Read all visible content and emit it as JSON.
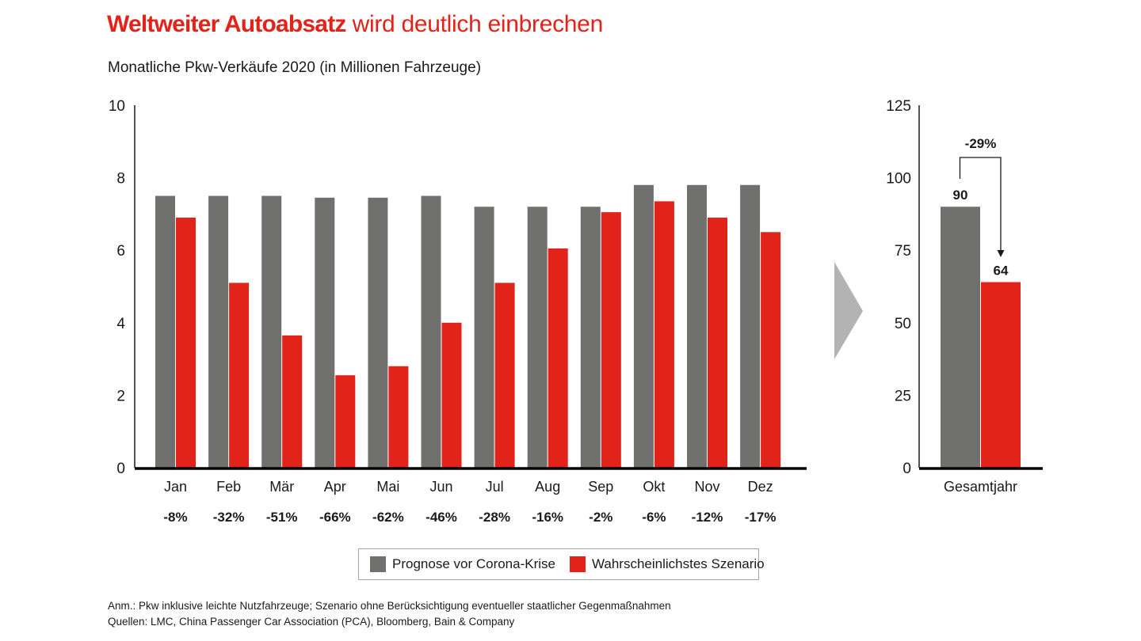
{
  "header": {
    "title_bold": "Weltweiter Autoabsatz",
    "title_rest": " wird deutlich einbrechen",
    "subtitle": "Monatliche Pkw-Verkäufe 2020 (in Millionen Fahrzeuge)"
  },
  "colors": {
    "accent": "#e2231a",
    "gray_series": "#70706e",
    "red_series": "#e2231a",
    "arrow_chevron": "#b3b3b3"
  },
  "chart_data": [
    {
      "type": "bar",
      "title": "Monatliche Pkw-Verkäufe 2020 (in Millionen Fahrzeuge)",
      "xlabel": "",
      "ylabel": "",
      "ylim": [
        0,
        10
      ],
      "yticks": [
        "0",
        "2",
        "4",
        "6",
        "8",
        "10"
      ],
      "categories": [
        "Jan",
        "Feb",
        "Mär",
        "Apr",
        "Mai",
        "Jun",
        "Jul",
        "Aug",
        "Sep",
        "Okt",
        "Nov",
        "Dez"
      ],
      "series": [
        {
          "name": "Prognose vor Corona-Krise",
          "color": "#70706e",
          "values": [
            7.5,
            7.5,
            7.5,
            7.45,
            7.45,
            7.5,
            7.2,
            7.2,
            7.2,
            7.8,
            7.8,
            7.8
          ]
        },
        {
          "name": "Wahrscheinlichstes Szenario",
          "color": "#e2231a",
          "values": [
            6.9,
            5.1,
            3.65,
            2.55,
            2.8,
            4.0,
            5.1,
            6.05,
            7.05,
            7.35,
            6.9,
            6.5
          ]
        }
      ],
      "change_labels": [
        "-8%",
        "-32%",
        "-51%",
        "-66%",
        "-62%",
        "-46%",
        "-28%",
        "-16%",
        "-2%",
        "-6%",
        "-12%",
        "-17%"
      ],
      "grid": false,
      "legend": "bottom"
    },
    {
      "type": "bar",
      "title": "",
      "ylim": [
        0,
        125
      ],
      "yticks": [
        "0",
        "25",
        "50",
        "75",
        "100",
        "125"
      ],
      "categories": [
        "Gesamtjahr"
      ],
      "series": [
        {
          "name": "Prognose vor Corona-Krise",
          "color": "#70706e",
          "values": [
            90
          ]
        },
        {
          "name": "Wahrscheinlichstes Szenario",
          "color": "#e2231a",
          "values": [
            64
          ]
        }
      ],
      "data_labels": [
        "90",
        "64"
      ],
      "annotation": "-29%",
      "grid": false
    }
  ],
  "legend": {
    "items": [
      {
        "label": "Prognose vor Corona-Krise",
        "color": "#70706e"
      },
      {
        "label": "Wahrscheinlichstes Szenario",
        "color": "#e2231a"
      }
    ]
  },
  "footer": {
    "note": "Anm.: Pkw inklusive leichte Nutzfahrzeuge; Szenario ohne Berücksichtigung eventueller staatlicher Gegenmaßnahmen",
    "sources": "Quellen: LMC, China Passenger Car Association (PCA), Bloomberg, Bain & Company"
  }
}
